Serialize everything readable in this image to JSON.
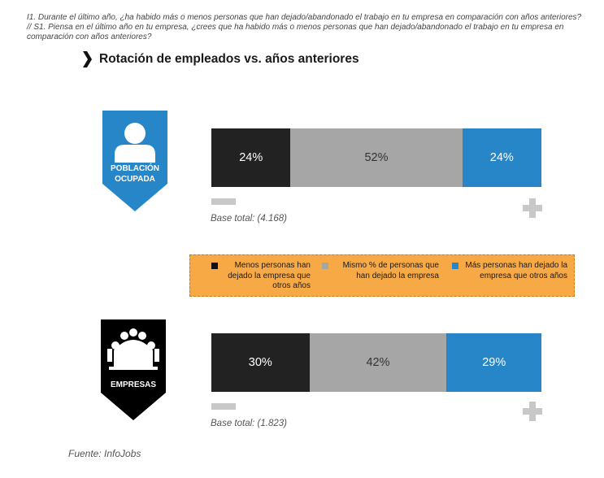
{
  "question": "I1. Durante el último año, ¿ha habido más o menos personas que han dejado/abandonado el trabajo en tu empresa en comparación con años anteriores? // S1. Piensa en el último año en tu empresa, ¿crees que ha habido más o menos personas que han dejado/abandonado el trabajo en tu empresa en comparación con años anteriores?",
  "source": "Fuente: InfoJobs",
  "colors": {
    "dark": "#222222",
    "gray": "#a6a6a6",
    "blue": "#2786c8",
    "legend_bg": "#f7a945"
  },
  "chart_data": {
    "type": "bar",
    "orientation": "horizontal-stacked-100",
    "title": "Rotación de empleados vs. años anteriores",
    "scale_min_label": "−",
    "scale_max_label": "+",
    "legend": [
      "Menos personas han dejado la empresa que otros años",
      "Mismo % de personas que han dejado la empresa",
      "Más personas han dejado la empresa que otros años"
    ],
    "groups": [
      {
        "name": "POBLACIÓN OCUPADA",
        "icon": "person-icon",
        "base": "Base total: (4.168)",
        "values": [
          24,
          52,
          24
        ],
        "labels": [
          "24%",
          "52%",
          "24%"
        ]
      },
      {
        "name": "EMPRESAS",
        "icon": "building-icon",
        "base": "Base total: (1.823)",
        "values": [
          30,
          42,
          29
        ],
        "labels": [
          "30%",
          "42%",
          "29%"
        ]
      }
    ]
  }
}
